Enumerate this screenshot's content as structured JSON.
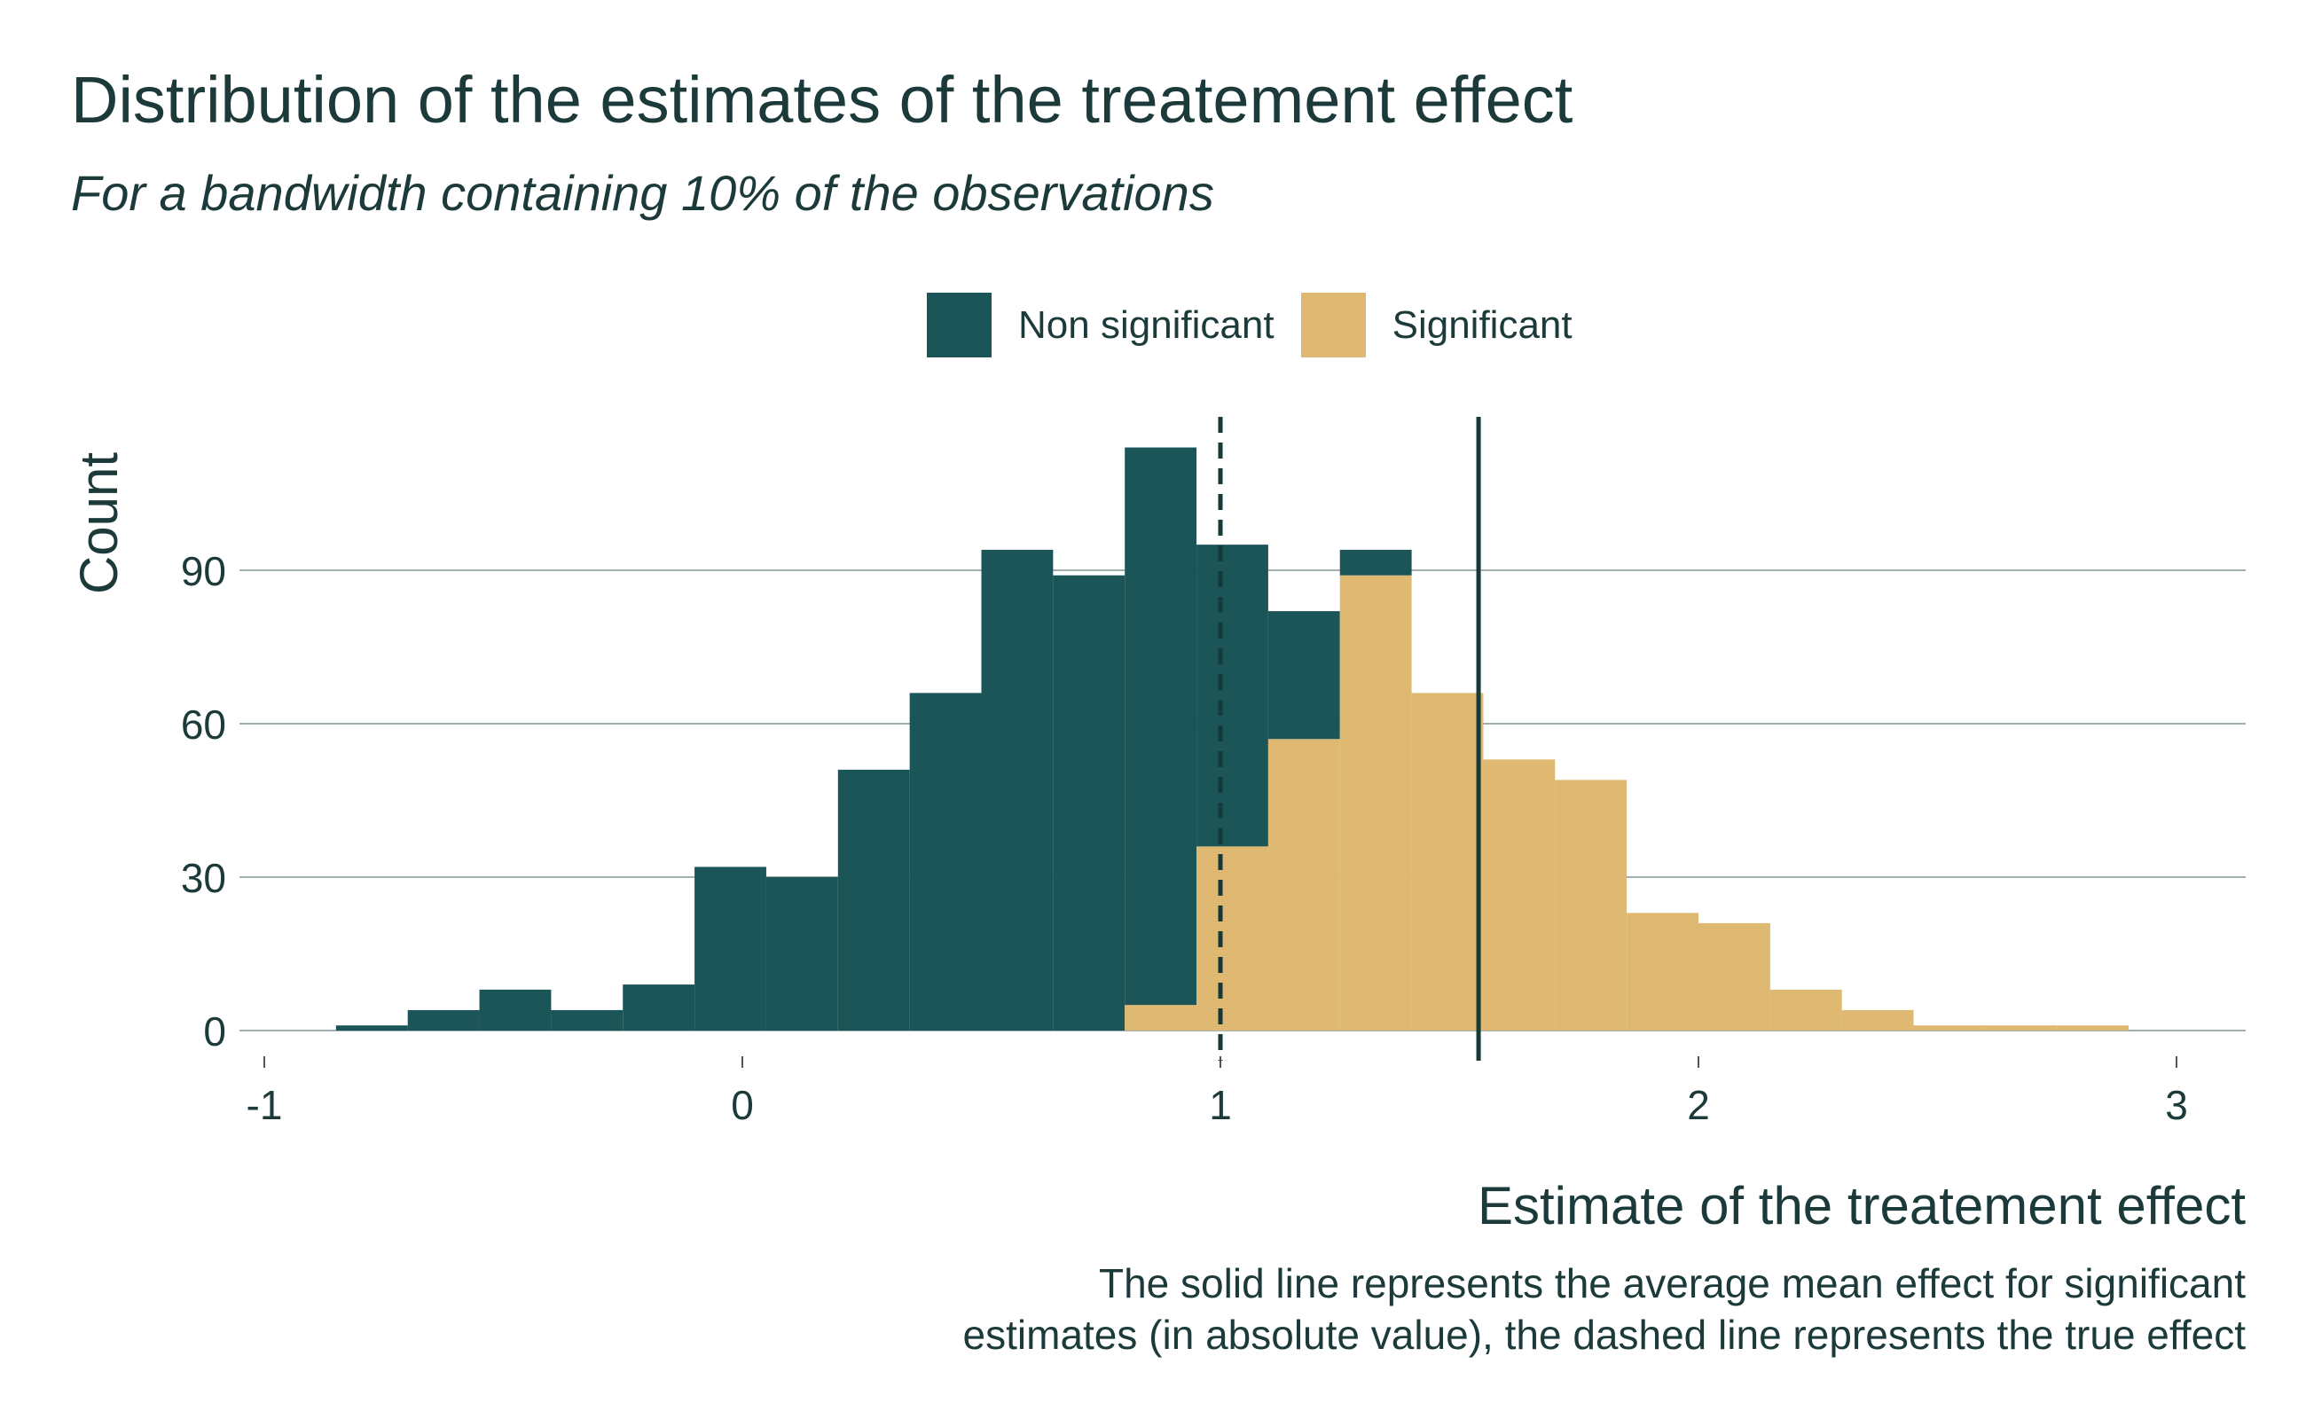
{
  "title": "Distribution of the estimates of the treatement effect",
  "subtitle": "For a bandwidth containing 10% of the observations",
  "legend": {
    "items": [
      {
        "label": "Non significant",
        "color": "#1b5558"
      },
      {
        "label": "Significant",
        "color": "#dfb872"
      }
    ]
  },
  "caption": {
    "line1": "The solid line represents the average mean effect for significant",
    "line2": "estimates (in absolute value), the dashed line represents the true effect"
  },
  "chart_data": {
    "type": "bar",
    "subtype": "stacked-histogram",
    "title": "Distribution of the estimates of the treatement effect",
    "subtitle": "For a bandwidth containing 10% of the observations",
    "xlabel": "Estimate of the treatement effect",
    "ylabel": "Count",
    "xlim": [
      -1,
      3.1
    ],
    "ylim": [
      0,
      118
    ],
    "x_ticks": [
      -1,
      0,
      1,
      2,
      3
    ],
    "x_tick_labels": [
      "-1",
      "0",
      "1",
      "2",
      "3"
    ],
    "y_ticks": [
      0,
      30,
      60,
      90
    ],
    "y_tick_labels": [
      "0",
      "30",
      "60",
      "90"
    ],
    "grid": "horizontal",
    "legend_position": "top",
    "bin_edges": [
      -0.85,
      -0.7,
      -0.55,
      -0.4,
      -0.25,
      -0.1,
      0.05,
      0.2,
      0.35,
      0.5,
      0.65,
      0.8,
      0.95,
      1.1,
      1.25,
      1.4,
      1.55,
      1.7,
      1.85,
      2.0,
      2.15,
      2.3,
      2.45,
      2.6,
      2.75,
      2.9
    ],
    "series": [
      {
        "name": "Significant",
        "color": "#dfb872",
        "values": [
          0,
          0,
          0,
          0,
          0,
          0,
          0,
          0,
          0,
          0,
          0,
          5,
          36,
          57,
          89,
          66,
          53,
          49,
          23,
          21,
          8,
          4,
          1,
          1,
          1
        ]
      },
      {
        "name": "Non significant",
        "color": "#1b5558",
        "values": [
          1,
          4,
          8,
          4,
          9,
          32,
          30,
          51,
          66,
          94,
          89,
          109,
          59,
          25,
          5,
          0,
          0,
          0,
          0,
          0,
          0,
          0,
          0,
          0,
          0
        ]
      }
    ],
    "reference_lines": [
      {
        "x": 1.0,
        "style": "dashed",
        "meaning": "true effect"
      },
      {
        "x": 1.54,
        "style": "solid",
        "meaning": "average mean effect for significant estimates"
      }
    ]
  }
}
